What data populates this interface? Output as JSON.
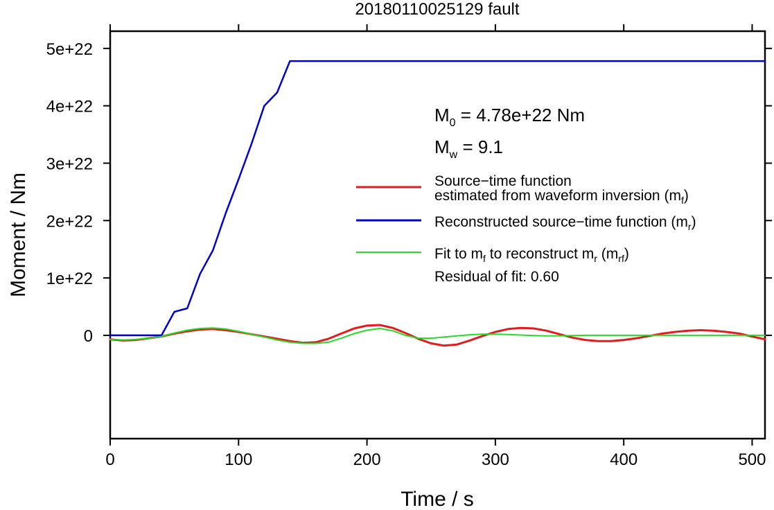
{
  "chart_data": {
    "type": "line",
    "title": "20180110025129 fault",
    "xlabel": "Time / s",
    "ylabel": "Moment / Nm",
    "xlim": [
      0,
      510
    ],
    "ylim": [
      -1.8e+22,
      5.3e+22
    ],
    "x_ticks": [
      0,
      100,
      200,
      300,
      400,
      500
    ],
    "x_tick_labels": [
      "0",
      "100",
      "200",
      "300",
      "400",
      "500"
    ],
    "y_ticks": [
      0,
      1e+22,
      2e+22,
      3e+22,
      4e+22,
      5e+22
    ],
    "y_tick_labels": [
      "0",
      "1e+22",
      "2e+22",
      "3e+22",
      "4e+22",
      "5e+22"
    ],
    "grid": false,
    "legend_position": "right",
    "annotations": {
      "m0_label": "M",
      "m0_sub": "0",
      "m0_value": " = 4.78e+22 Nm",
      "mw_label": "M",
      "mw_sub": "w",
      "mw_value": " = 9.1",
      "residual": "Residual of fit: 0.60"
    },
    "series": [
      {
        "key": "mf",
        "color": "#e41a1c",
        "legend_line1": "Source−time function",
        "legend_line2_pre": "estimated from waveform inversion (m",
        "legend_line2_sub": "f",
        "legend_line2_post": ")",
        "x": [
          0,
          10,
          20,
          30,
          40,
          50,
          60,
          70,
          80,
          90,
          100,
          110,
          120,
          130,
          140,
          150,
          160,
          170,
          180,
          190,
          200,
          210,
          220,
          230,
          240,
          250,
          260,
          270,
          280,
          290,
          300,
          310,
          320,
          330,
          340,
          350,
          360,
          370,
          380,
          390,
          400,
          410,
          420,
          430,
          440,
          450,
          460,
          470,
          480,
          490,
          500,
          510
        ],
        "y": [
          -7e+20,
          -9e+20,
          -8e+20,
          -5e+20,
          -2e+20,
          3e+20,
          7e+20,
          1e+21,
          1.1e+21,
          9e+20,
          6e+20,
          2e+20,
          -2e+20,
          -6e+20,
          -1e+21,
          -1.3e+21,
          -1.2e+21,
          -6e+20,
          3e+20,
          1.2e+21,
          1.7e+21,
          1.8e+21,
          1.3e+21,
          4e+20,
          -6e+20,
          -1.4e+21,
          -1.8e+21,
          -1.6e+21,
          -9e+20,
          -1e+20,
          6e+20,
          1.1e+21,
          1.3e+21,
          1.2e+21,
          8e+20,
          2e+20,
          -4e+20,
          -8e+20,
          -1e+21,
          -1e+21,
          -8e+20,
          -5e+20,
          -1e+20,
          3e+20,
          6e+20,
          8e+20,
          9e+20,
          8e+20,
          6e+20,
          3e+20,
          -2e+20,
          -7e+20
        ]
      },
      {
        "key": "mr",
        "color": "#0000cc",
        "legend_pre": "Reconstructed source−time function (m",
        "legend_sub": "r",
        "legend_post": ")",
        "x": [
          0,
          40,
          50,
          60,
          70,
          80,
          90,
          100,
          110,
          120,
          130,
          140,
          510
        ],
        "y": [
          0,
          0,
          4.1e+21,
          4.7e+21,
          1.07e+22,
          1.48e+22,
          2.13e+22,
          2.72e+22,
          3.33e+22,
          4e+22,
          4.23e+22,
          4.78e+22,
          4.78e+22
        ]
      },
      {
        "key": "mrf",
        "color": "#22dd22",
        "legend_pre": "Fit to m",
        "legend_sub1": "f",
        "legend_mid": " to reconstruct m",
        "legend_sub2": "r",
        "legend_mid2": " (m",
        "legend_sub3": "rf",
        "legend_post": ")",
        "x": [
          0,
          10,
          20,
          30,
          40,
          50,
          60,
          70,
          80,
          90,
          100,
          110,
          120,
          130,
          140,
          150,
          160,
          170,
          180,
          190,
          200,
          210,
          220,
          230,
          240,
          250,
          260,
          270,
          280,
          290,
          300,
          310,
          320,
          330,
          340,
          350,
          360,
          370,
          380,
          400,
          450,
          510
        ],
        "y": [
          -7e+20,
          -8e+20,
          -7e+20,
          -5e+20,
          -2e+20,
          4e+20,
          9e+20,
          1.2e+21,
          1.3e+21,
          1.1e+21,
          7e+20,
          2e+20,
          -3e+20,
          -8e+20,
          -1.2e+21,
          -1.4e+21,
          -1.4e+21,
          -1.2e+21,
          -5e+20,
          3e+20,
          9e+20,
          1.2e+21,
          8e+20,
          0.0,
          -5e+20,
          -5e+20,
          -3e+20,
          -1e+20,
          1e+20,
          2e+20,
          2e+20,
          1.5e+20,
          5e+19,
          -5e+19,
          -1e+20,
          -1e+20,
          -5e+19,
          0.0,
          0.0,
          0.0,
          0.0,
          0.0
        ]
      }
    ]
  }
}
